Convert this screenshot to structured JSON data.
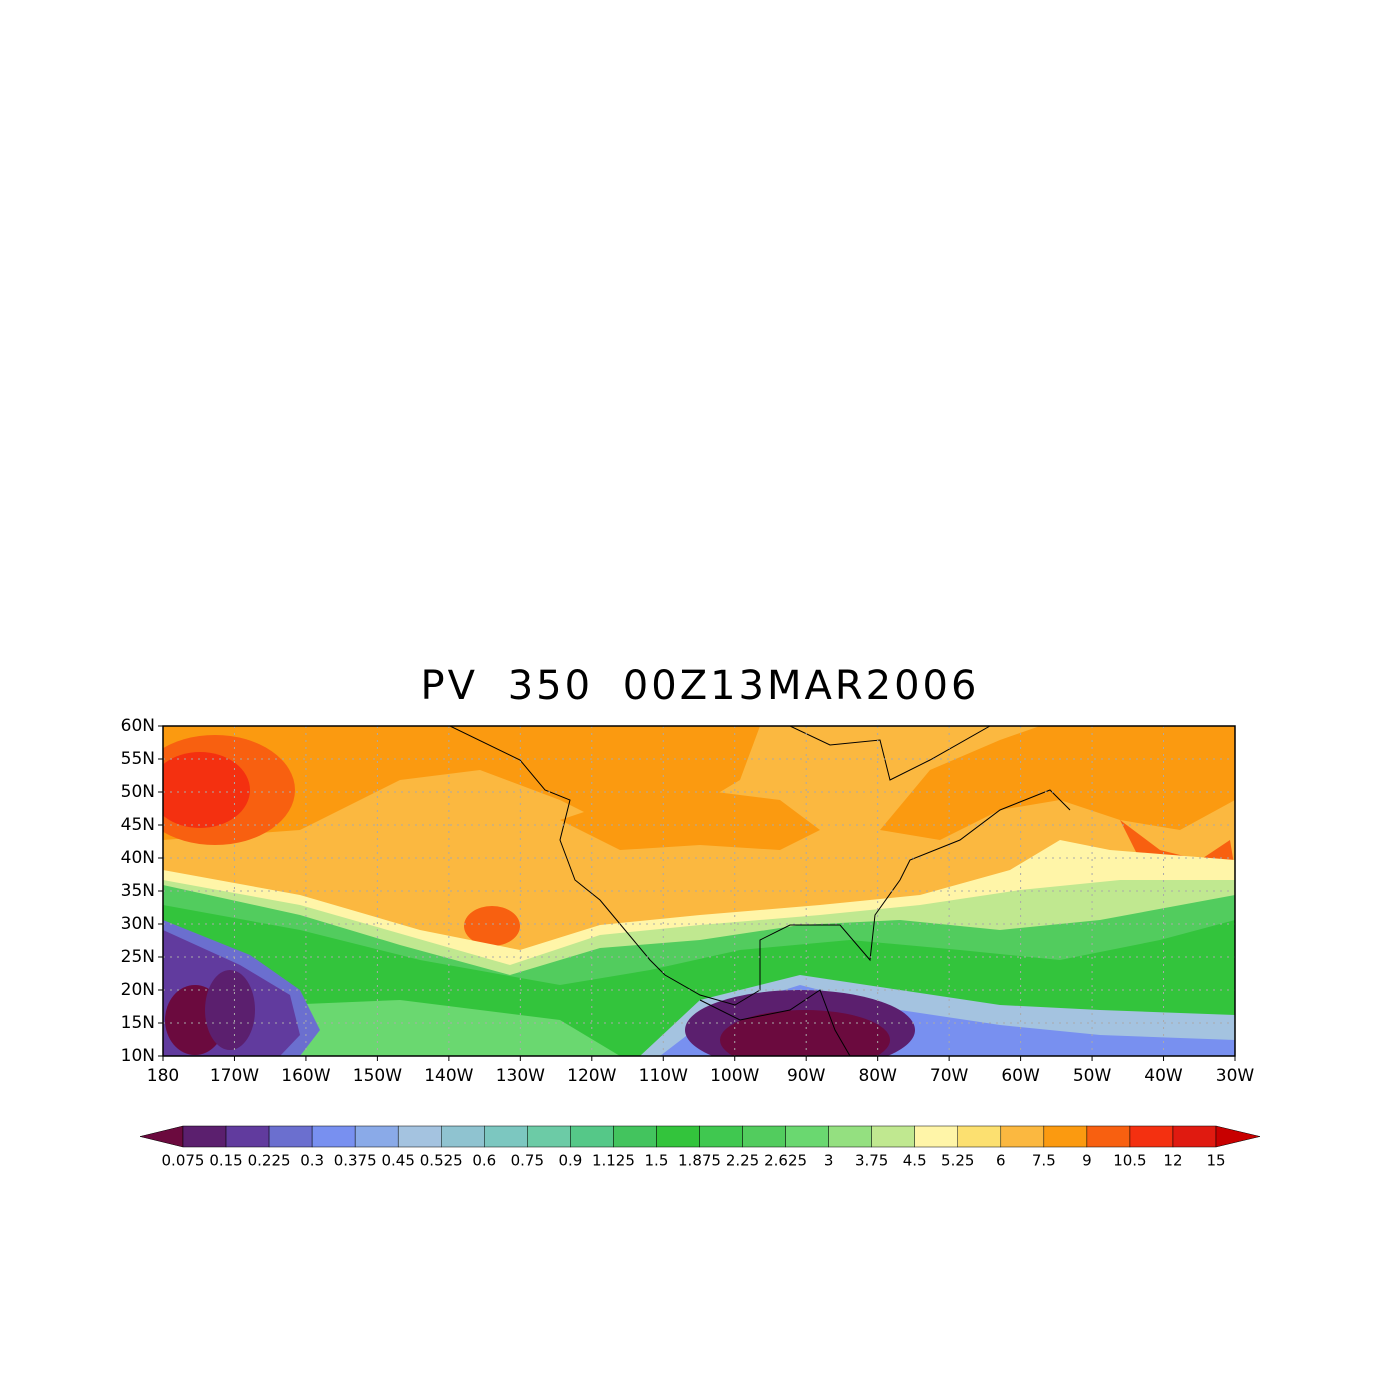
{
  "chart_data": {
    "type": "contour-map",
    "title": "PV 350 00Z13MAR2006",
    "xlim": [
      -180,
      -30
    ],
    "ylim": [
      10,
      60
    ],
    "xticks": [
      {
        "value": -180,
        "label": "180"
      },
      {
        "value": -170,
        "label": "170W"
      },
      {
        "value": -160,
        "label": "160W"
      },
      {
        "value": -150,
        "label": "150W"
      },
      {
        "value": -140,
        "label": "140W"
      },
      {
        "value": -130,
        "label": "130W"
      },
      {
        "value": -120,
        "label": "120W"
      },
      {
        "value": -110,
        "label": "110W"
      },
      {
        "value": -100,
        "label": "100W"
      },
      {
        "value": -90,
        "label": "90W"
      },
      {
        "value": -80,
        "label": "80W"
      },
      {
        "value": -70,
        "label": "70W"
      },
      {
        "value": -60,
        "label": "60W"
      },
      {
        "value": -50,
        "label": "50W"
      },
      {
        "value": -40,
        "label": "40W"
      },
      {
        "value": -30,
        "label": "30W"
      }
    ],
    "yticks": [
      {
        "value": 10,
        "label": "10N"
      },
      {
        "value": 15,
        "label": "15N"
      },
      {
        "value": 20,
        "label": "20N"
      },
      {
        "value": 25,
        "label": "25N"
      },
      {
        "value": 30,
        "label": "30N"
      },
      {
        "value": 35,
        "label": "35N"
      },
      {
        "value": 40,
        "label": "40N"
      },
      {
        "value": 45,
        "label": "45N"
      },
      {
        "value": 50,
        "label": "50N"
      },
      {
        "value": 55,
        "label": "55N"
      },
      {
        "value": 60,
        "label": "60N"
      }
    ],
    "grid": true,
    "levels": [
      0.075,
      0.15,
      0.225,
      0.3,
      0.375,
      0.45,
      0.525,
      0.6,
      0.75,
      0.9,
      1.125,
      1.5,
      1.875,
      2.25,
      2.625,
      3,
      3.75,
      4.5,
      5.25,
      6,
      7.5,
      9,
      10.5,
      12,
      15
    ],
    "colors": [
      "#6b0a3e",
      "#5b1f6e",
      "#613b9e",
      "#6b6fcf",
      "#7890f0",
      "#8aaae8",
      "#a4c3e0",
      "#8fc3d0",
      "#7cc7c0",
      "#6ccba6",
      "#55c888",
      "#43c45e",
      "#33c43c",
      "#40c850",
      "#52cc5e",
      "#6ad870",
      "#94e080",
      "#c0e890",
      "#fff5a8",
      "#fce070",
      "#fbb840",
      "#fb9a10",
      "#f86010",
      "#f43010",
      "#e01a10",
      "#c80000"
    ]
  }
}
